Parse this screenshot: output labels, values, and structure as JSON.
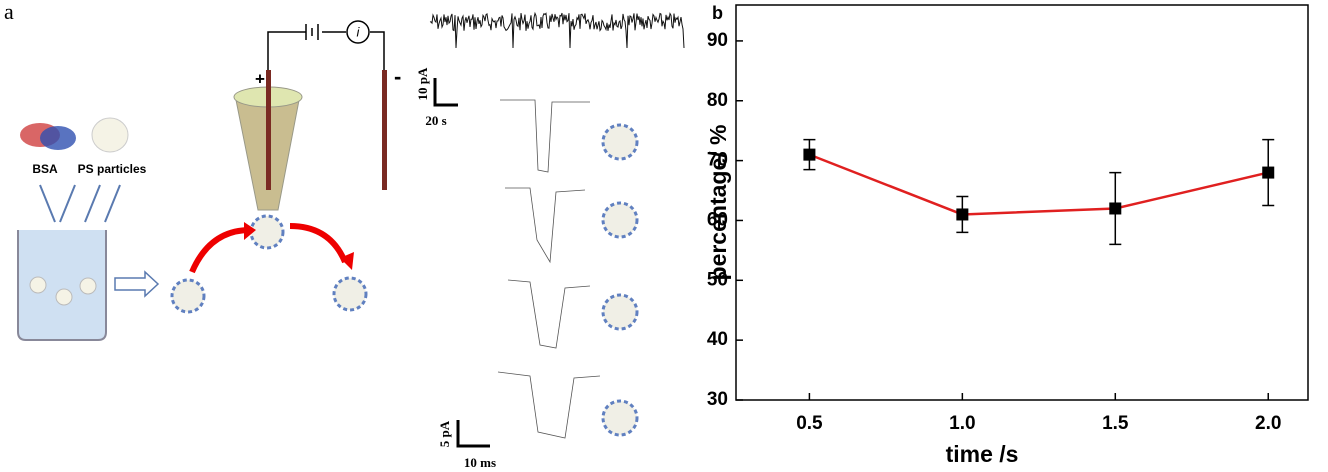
{
  "panel_a": {
    "label": "a",
    "protein_label": "BSA",
    "particle_label": "PS particles",
    "plus": "+",
    "minus": "-",
    "current_symbol": "i",
    "trace_scale": {
      "current": "10 pA",
      "time": "20 s"
    },
    "event_scale": {
      "current": "5 pA",
      "time": "10 ms"
    }
  },
  "chart_data": {
    "type": "line",
    "panel_label": "b",
    "x_label": "time /s",
    "y_label": "percentage/ %",
    "x": [
      0.5,
      1.0,
      1.5,
      2.0
    ],
    "series": [
      {
        "color": "#e02020",
        "marker_color": "#000000",
        "values": [
          71,
          61,
          62,
          68
        ],
        "errors": [
          2.5,
          3,
          6,
          5.5
        ]
      }
    ],
    "xlim": [
      0.26,
      2.13
    ],
    "xticks": [
      0.5,
      {
        "value": 1,
        "label": "1.0"
      },
      1.5,
      {
        "value": 2,
        "label": "2.0"
      }
    ],
    "ylim": [
      30,
      96
    ],
    "yticks": [
      30,
      40,
      50,
      60,
      70,
      80,
      90
    ]
  }
}
